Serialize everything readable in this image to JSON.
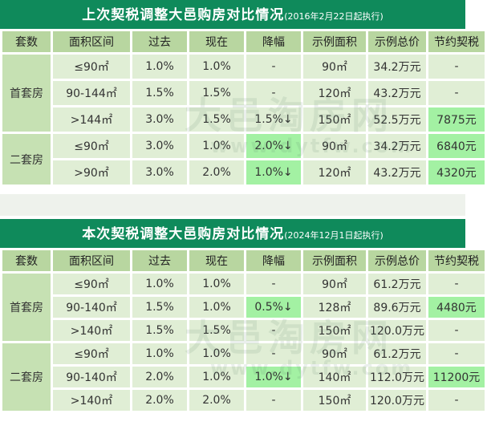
{
  "table1": {
    "title": "上次契税调整大邑购房对比情况",
    "title_note": "(2016年2月22日起执行)",
    "headers": [
      "套数",
      "面积区间",
      "过去",
      "现在",
      "降幅",
      "示例面积",
      "示例总价",
      "节约契税"
    ],
    "groups": [
      {
        "category": "首套房",
        "rows": [
          {
            "area": "≤90㎡",
            "past": "1.0%",
            "now": "1.0%",
            "drop": "-",
            "sample_area": "90㎡",
            "sample_price": "34.2万元",
            "saving": "-",
            "hl_drop": false,
            "hl_saving": false
          },
          {
            "area": "90-144㎡",
            "past": "1.5%",
            "now": "1.5%",
            "drop": "-",
            "sample_area": "120㎡",
            "sample_price": "43.2万元",
            "saving": "-",
            "hl_drop": false,
            "hl_saving": false
          },
          {
            "area": ">144㎡",
            "past": "3.0%",
            "now": "1.5%",
            "drop": "1.5%↓",
            "sample_area": "150㎡",
            "sample_price": "52.5万元",
            "saving": "7875元",
            "hl_drop": false,
            "hl_saving": true
          }
        ]
      },
      {
        "category": "二套房",
        "rows": [
          {
            "area": "≤90㎡",
            "past": "3.0%",
            "now": "1.0%",
            "drop": "2.0%↓",
            "sample_area": "90㎡",
            "sample_price": "34.2万元",
            "saving": "6840元",
            "hl_drop": true,
            "hl_saving": true
          },
          {
            "area": ">90㎡",
            "past": "3.0%",
            "now": "2.0%",
            "drop": "1.0%↓",
            "sample_area": "120㎡",
            "sample_price": "43.2万元",
            "saving": "4320元",
            "hl_drop": true,
            "hl_saving": true
          }
        ]
      }
    ]
  },
  "table2": {
    "title": "本次契税调整大邑购房对比情况",
    "title_note": "(2024年12月1日起执行)",
    "headers": [
      "套数",
      "面积区间",
      "过去",
      "现在",
      "降幅",
      "示例面积",
      "示例总价",
      "节约契税"
    ],
    "groups": [
      {
        "category": "首套房",
        "rows": [
          {
            "area": "≤90㎡",
            "past": "1.0%",
            "now": "1.0%",
            "drop": "-",
            "sample_area": "90㎡",
            "sample_price": "61.2万元",
            "saving": "-",
            "hl_drop": false,
            "hl_saving": false
          },
          {
            "area": "90-140㎡",
            "past": "1.5%",
            "now": "1.0%",
            "drop": "0.5%↓",
            "sample_area": "128㎡",
            "sample_price": "89.6万元",
            "saving": "4480元",
            "hl_drop": true,
            "hl_saving": true
          },
          {
            "area": ">140㎡",
            "past": "1.5%",
            "now": "1.5%",
            "drop": "-",
            "sample_area": "150㎡",
            "sample_price": "120.0万元",
            "saving": "-",
            "hl_drop": false,
            "hl_saving": false
          }
        ]
      },
      {
        "category": "二套房",
        "rows": [
          {
            "area": "≤90㎡",
            "past": "1.0%",
            "now": "1.0%",
            "drop": "-",
            "sample_area": "90㎡",
            "sample_price": "61.2万元",
            "saving": "-",
            "hl_drop": false,
            "hl_saving": false
          },
          {
            "area": "90-140㎡",
            "past": "2.0%",
            "now": "1.0%",
            "drop": "1.0%↓",
            "sample_area": "140㎡",
            "sample_price": "112.0万元",
            "saving": "11200元",
            "hl_drop": true,
            "hl_saving": true
          },
          {
            "area": ">140㎡",
            "past": "2.0%",
            "now": "2.0%",
            "drop": "-",
            "sample_area": "150㎡",
            "sample_price": "120.0万元",
            "saving": "-",
            "hl_drop": false,
            "hl_saving": false
          }
        ]
      }
    ]
  },
  "watermark": {
    "name": "大邑淘房网",
    "url": "www.dytfw.com"
  },
  "colors": {
    "title_bg": "#0f8a5b",
    "header_bg": "#b8d6a0",
    "cell_bg": "#e0eed5",
    "highlight_bg": "#a3f1a3"
  }
}
